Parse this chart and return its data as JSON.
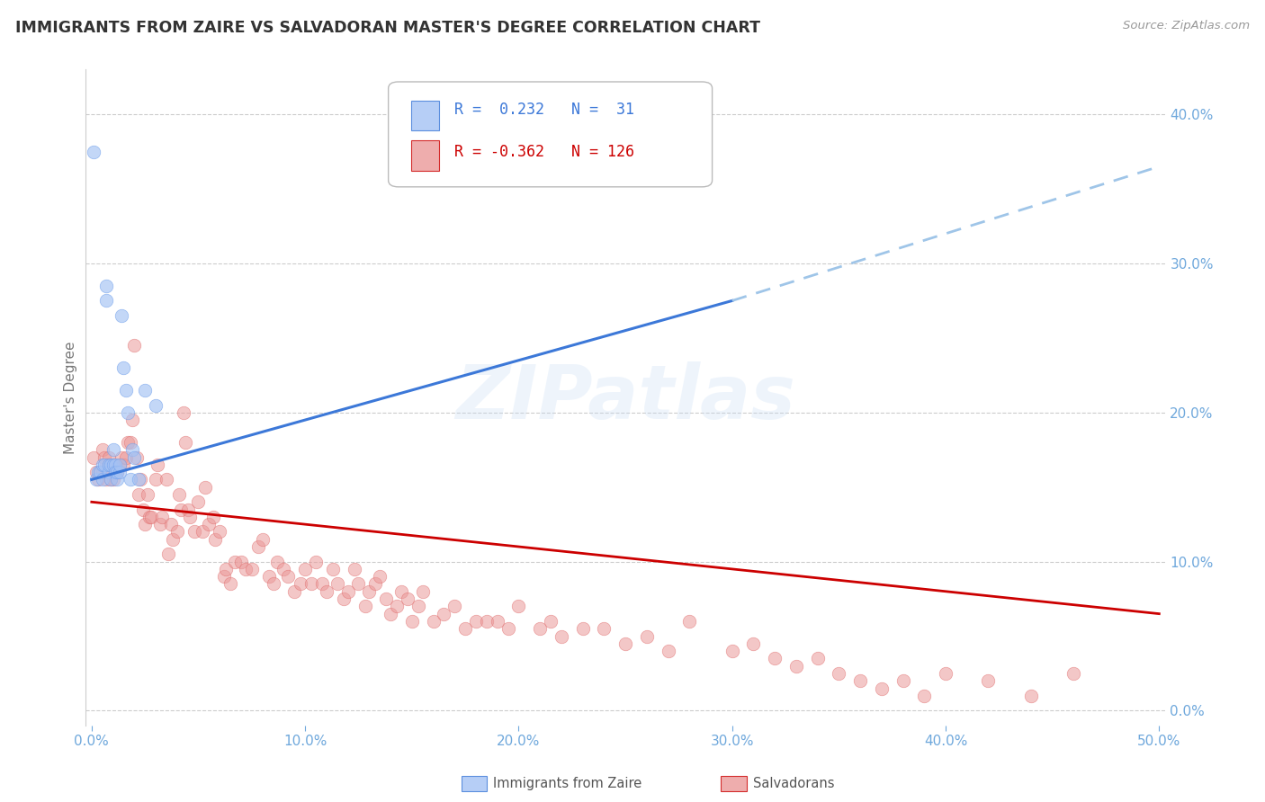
{
  "title": "IMMIGRANTS FROM ZAIRE VS SALVADORAN MASTER'S DEGREE CORRELATION CHART",
  "source": "Source: ZipAtlas.com",
  "ylabel": "Master's Degree",
  "xlim": [
    -0.003,
    0.503
  ],
  "ylim": [
    -0.01,
    0.43
  ],
  "xtick_vals": [
    0.0,
    0.1,
    0.2,
    0.3,
    0.4,
    0.5
  ],
  "xtick_labels": [
    "0.0%",
    "10.0%",
    "20.0%",
    "30.0%",
    "40.0%",
    "50.0%"
  ],
  "ytick_vals": [
    0.0,
    0.1,
    0.2,
    0.3,
    0.4
  ],
  "ytick_labels": [
    "0.0%",
    "10.0%",
    "20.0%",
    "30.0%",
    "40.0%"
  ],
  "blue_fill": "#a4c2f4",
  "blue_edge": "#6d9eeb",
  "blue_line": "#3c78d8",
  "blue_dash": "#9fc5e8",
  "pink_fill": "#ea9999",
  "pink_edge": "#e06666",
  "pink_line": "#cc0000",
  "axis_label_color": "#6fa8dc",
  "grid_color": "#cccccc",
  "blue_scatter_x": [
    0.001,
    0.002,
    0.003,
    0.004,
    0.005,
    0.005,
    0.006,
    0.007,
    0.007,
    0.008,
    0.008,
    0.009,
    0.009,
    0.01,
    0.01,
    0.011,
    0.011,
    0.012,
    0.012,
    0.013,
    0.013,
    0.014,
    0.015,
    0.016,
    0.017,
    0.018,
    0.019,
    0.02,
    0.022,
    0.025,
    0.03
  ],
  "blue_scatter_y": [
    0.375,
    0.155,
    0.16,
    0.16,
    0.165,
    0.155,
    0.165,
    0.285,
    0.275,
    0.16,
    0.165,
    0.165,
    0.155,
    0.175,
    0.165,
    0.165,
    0.16,
    0.155,
    0.16,
    0.16,
    0.165,
    0.265,
    0.23,
    0.215,
    0.2,
    0.155,
    0.175,
    0.17,
    0.155,
    0.215,
    0.205
  ],
  "pink_scatter_x": [
    0.001,
    0.002,
    0.003,
    0.004,
    0.005,
    0.005,
    0.006,
    0.007,
    0.007,
    0.008,
    0.008,
    0.009,
    0.01,
    0.01,
    0.011,
    0.012,
    0.013,
    0.014,
    0.015,
    0.016,
    0.017,
    0.018,
    0.019,
    0.02,
    0.021,
    0.022,
    0.023,
    0.024,
    0.025,
    0.026,
    0.027,
    0.028,
    0.03,
    0.031,
    0.032,
    0.033,
    0.035,
    0.036,
    0.037,
    0.038,
    0.04,
    0.041,
    0.042,
    0.043,
    0.044,
    0.045,
    0.046,
    0.048,
    0.05,
    0.052,
    0.053,
    0.055,
    0.057,
    0.058,
    0.06,
    0.062,
    0.063,
    0.065,
    0.067,
    0.07,
    0.072,
    0.075,
    0.078,
    0.08,
    0.083,
    0.085,
    0.087,
    0.09,
    0.092,
    0.095,
    0.098,
    0.1,
    0.103,
    0.105,
    0.108,
    0.11,
    0.113,
    0.115,
    0.118,
    0.12,
    0.123,
    0.125,
    0.128,
    0.13,
    0.133,
    0.135,
    0.138,
    0.14,
    0.143,
    0.145,
    0.148,
    0.15,
    0.153,
    0.155,
    0.16,
    0.165,
    0.17,
    0.175,
    0.18,
    0.185,
    0.19,
    0.195,
    0.2,
    0.21,
    0.215,
    0.22,
    0.23,
    0.24,
    0.25,
    0.26,
    0.27,
    0.28,
    0.3,
    0.31,
    0.32,
    0.33,
    0.34,
    0.35,
    0.36,
    0.37,
    0.38,
    0.39,
    0.4,
    0.42,
    0.44,
    0.46
  ],
  "pink_scatter_y": [
    0.17,
    0.16,
    0.155,
    0.16,
    0.175,
    0.16,
    0.17,
    0.165,
    0.155,
    0.17,
    0.165,
    0.155,
    0.165,
    0.155,
    0.16,
    0.16,
    0.165,
    0.17,
    0.165,
    0.17,
    0.18,
    0.18,
    0.195,
    0.245,
    0.17,
    0.145,
    0.155,
    0.135,
    0.125,
    0.145,
    0.13,
    0.13,
    0.155,
    0.165,
    0.125,
    0.13,
    0.155,
    0.105,
    0.125,
    0.115,
    0.12,
    0.145,
    0.135,
    0.2,
    0.18,
    0.135,
    0.13,
    0.12,
    0.14,
    0.12,
    0.15,
    0.125,
    0.13,
    0.115,
    0.12,
    0.09,
    0.095,
    0.085,
    0.1,
    0.1,
    0.095,
    0.095,
    0.11,
    0.115,
    0.09,
    0.085,
    0.1,
    0.095,
    0.09,
    0.08,
    0.085,
    0.095,
    0.085,
    0.1,
    0.085,
    0.08,
    0.095,
    0.085,
    0.075,
    0.08,
    0.095,
    0.085,
    0.07,
    0.08,
    0.085,
    0.09,
    0.075,
    0.065,
    0.07,
    0.08,
    0.075,
    0.06,
    0.07,
    0.08,
    0.06,
    0.065,
    0.07,
    0.055,
    0.06,
    0.06,
    0.06,
    0.055,
    0.07,
    0.055,
    0.06,
    0.05,
    0.055,
    0.055,
    0.045,
    0.05,
    0.04,
    0.06,
    0.04,
    0.045,
    0.035,
    0.03,
    0.035,
    0.025,
    0.02,
    0.015,
    0.02,
    0.01,
    0.025,
    0.02,
    0.01,
    0.025
  ],
  "blue_line_x_start": 0.0,
  "blue_line_x_solid_end": 0.3,
  "blue_line_x_end": 0.5,
  "blue_line_y_start": 0.155,
  "blue_line_y_at_solid_end": 0.275,
  "blue_line_y_end": 0.365,
  "pink_line_x_start": 0.0,
  "pink_line_x_end": 0.5,
  "pink_line_y_start": 0.14,
  "pink_line_y_end": 0.065,
  "watermark": "ZIPatlas",
  "figsize": [
    14.06,
    8.92
  ],
  "dpi": 100
}
